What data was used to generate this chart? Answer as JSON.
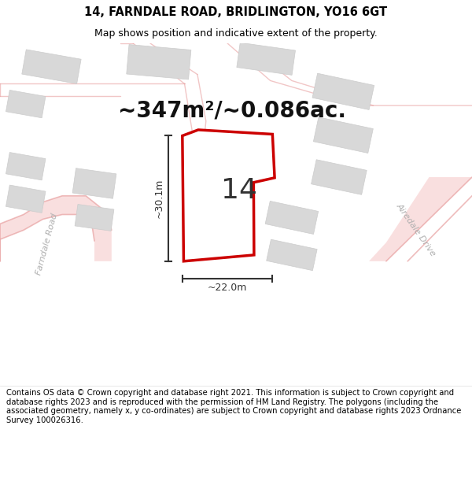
{
  "title": "14, FARNDALE ROAD, BRIDLINGTON, YO16 6GT",
  "subtitle": "Map shows position and indicative extent of the property.",
  "area_text": "~347m²/~0.086ac.",
  "dim_width": "~22.0m",
  "dim_height": "~30.1m",
  "property_number": "14",
  "footer": "Contains OS data © Crown copyright and database right 2021. This information is subject to Crown copyright and database rights 2023 and is reproduced with the permission of HM Land Registry. The polygons (including the associated geometry, namely x, y co-ordinates) are subject to Crown copyright and database rights 2023 Ordnance Survey 100026316.",
  "map_bg": "#f2f0f0",
  "property_fill": "#ffffff",
  "property_edge": "#cc0000",
  "road_color": "#f5c0c0",
  "road_line": "#e8a0a0",
  "building_color": "#d8d8d8",
  "building_edge": "#cccccc",
  "title_fontsize": 10.5,
  "subtitle_fontsize": 9,
  "area_fontsize": 20,
  "number_fontsize": 26,
  "dim_fontsize": 9,
  "footer_fontsize": 7.2,
  "road_label_color": "#b0b0b0",
  "road_label_size": 8
}
